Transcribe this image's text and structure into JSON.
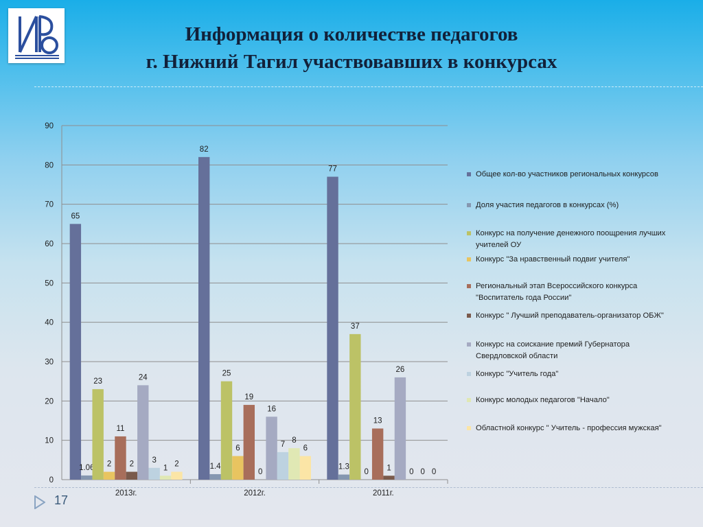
{
  "title": {
    "line1": "Информация о количестве педагогов",
    "line2": "г. Нижний Тагил участвовавших в конкурсах"
  },
  "page_number": "17",
  "colors": {
    "slide_top": "#1aaee8",
    "slide_bottom": "#e4e7ee",
    "logo_blue": "#2b4f9e"
  },
  "icons": {
    "logo": "ivo-logo",
    "nav": "triangle-arrow-icon"
  },
  "chart_data": {
    "type": "bar",
    "title": "",
    "xlabel": "",
    "ylabel": "",
    "ylim": [
      0,
      90
    ],
    "yticks": [
      "0",
      "10",
      "20",
      "30",
      "40",
      "50",
      "60",
      "70",
      "80",
      "90"
    ],
    "categories": [
      "2013г.",
      "2012г.",
      "2011г."
    ],
    "grid": true,
    "legend_position": "right",
    "series": [
      {
        "name": "Общее кол-во участников региональных конкурсов",
        "color": "#65709a",
        "values": [
          65,
          82,
          77
        ],
        "labels": [
          "65",
          "82",
          "77"
        ]
      },
      {
        "name": "Доля участия педагогов в конкурсах (%)",
        "color": "#8597b0",
        "values": [
          1.06,
          1.4,
          1.3
        ],
        "labels": [
          "1.06",
          "1.4",
          "1.3"
        ]
      },
      {
        "name": "Конкурс на получение денежного поощрения лучших учителей ОУ",
        "color": "#bcc266",
        "values": [
          23,
          25,
          37
        ],
        "labels": [
          "23",
          "25",
          "37"
        ]
      },
      {
        "name": "Конкурс \"За нравственный подвиг учителя\"",
        "color": "#e8c460",
        "values": [
          2,
          6,
          0
        ],
        "labels": [
          "2",
          "6",
          "0"
        ]
      },
      {
        "name": "Региональный этап Всероссийского конкурса \"Воспитатель года России\"",
        "color": "#a86e5b",
        "values": [
          11,
          19,
          13
        ],
        "labels": [
          "11",
          "19",
          "13"
        ]
      },
      {
        "name": "Конкурс \" Лучший преподаватель-организатор ОБЖ\"",
        "color": "#7a5a4c",
        "values": [
          2,
          0,
          1
        ],
        "labels": [
          "2",
          "0",
          "1"
        ]
      },
      {
        "name": "Конкурс на соискание премий Губернатора Свердловской области",
        "color": "#a5aac2",
        "values": [
          24,
          16,
          26
        ],
        "labels": [
          "24",
          "16",
          "26"
        ]
      },
      {
        "name": "Конкурс \"Учитель года\"",
        "color": "#bdd2e0",
        "values": [
          3,
          7,
          0
        ],
        "labels": [
          "3",
          "7",
          "0"
        ]
      },
      {
        "name": "Конкурс молодых педагогов \"Начало\"",
        "color": "#e0e8b4",
        "values": [
          1,
          8,
          0
        ],
        "labels": [
          "1",
          "8",
          "0"
        ]
      },
      {
        "name": "Областной конкурс \" Учитель - профессия мужская\"",
        "color": "#fbe5a6",
        "values": [
          2,
          6,
          0
        ],
        "labels": [
          "2",
          "6",
          "0"
        ]
      }
    ]
  }
}
